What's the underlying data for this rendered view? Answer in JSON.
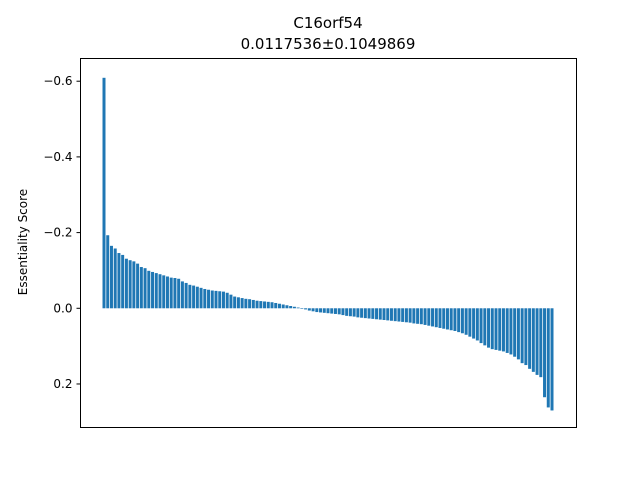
{
  "chart_data": {
    "type": "bar",
    "title": "C16orf54",
    "subtitle": "0.0117536±0.1049869",
    "xlabel": "",
    "ylabel": "Essentiality Score",
    "y_inverted": true,
    "ylim": [
      -0.66,
      0.315
    ],
    "yticks": [
      {
        "value": -0.6,
        "label": "−0.6"
      },
      {
        "value": -0.4,
        "label": "−0.4"
      },
      {
        "value": -0.2,
        "label": "−0.2"
      },
      {
        "value": 0.0,
        "label": "0.0"
      },
      {
        "value": 0.2,
        "label": "0.2"
      }
    ],
    "grid": false,
    "color": "#1f77b4",
    "values": [
      -0.609,
      -0.193,
      -0.165,
      -0.158,
      -0.146,
      -0.141,
      -0.131,
      -0.127,
      -0.124,
      -0.118,
      -0.109,
      -0.106,
      -0.099,
      -0.096,
      -0.093,
      -0.09,
      -0.087,
      -0.084,
      -0.081,
      -0.08,
      -0.078,
      -0.071,
      -0.067,
      -0.062,
      -0.06,
      -0.057,
      -0.054,
      -0.051,
      -0.049,
      -0.047,
      -0.046,
      -0.045,
      -0.044,
      -0.041,
      -0.036,
      -0.031,
      -0.029,
      -0.027,
      -0.025,
      -0.024,
      -0.022,
      -0.02,
      -0.019,
      -0.018,
      -0.017,
      -0.016,
      -0.014,
      -0.012,
      -0.01,
      -0.008,
      -0.006,
      -0.004,
      -0.002,
      0.001,
      0.003,
      0.006,
      0.008,
      0.01,
      0.011,
      0.012,
      0.013,
      0.014,
      0.015,
      0.016,
      0.018,
      0.02,
      0.021,
      0.022,
      0.024,
      0.025,
      0.026,
      0.027,
      0.028,
      0.029,
      0.03,
      0.031,
      0.032,
      0.033,
      0.034,
      0.035,
      0.036,
      0.037,
      0.038,
      0.04,
      0.041,
      0.042,
      0.044,
      0.046,
      0.048,
      0.05,
      0.052,
      0.054,
      0.056,
      0.058,
      0.06,
      0.063,
      0.066,
      0.07,
      0.075,
      0.08,
      0.085,
      0.092,
      0.098,
      0.104,
      0.108,
      0.11,
      0.112,
      0.114,
      0.118,
      0.122,
      0.128,
      0.135,
      0.145,
      0.15,
      0.16,
      0.168,
      0.176,
      0.182,
      0.235,
      0.262,
      0.27
    ]
  }
}
